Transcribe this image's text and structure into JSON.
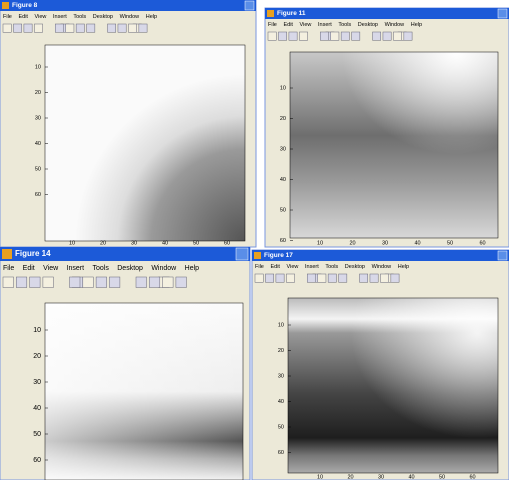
{
  "menu": [
    "File",
    "Edit",
    "View",
    "Insert",
    "Tools",
    "Desktop",
    "Window",
    "Help"
  ],
  "windows": [
    {
      "title": "Figure 8",
      "yticks": [
        10,
        20,
        30,
        40,
        50,
        60
      ],
      "xticks": [
        10,
        20,
        30,
        40,
        50,
        60
      ]
    },
    {
      "title": "Figure 11",
      "yticks": [
        10,
        20,
        30,
        40,
        50,
        60
      ],
      "xticks": [
        10,
        20,
        30,
        40,
        50,
        60
      ]
    },
    {
      "title": "Figure 14",
      "yticks": [
        10,
        20,
        30,
        40,
        50,
        60
      ],
      "xticks": []
    },
    {
      "title": "Figure 17",
      "yticks": [
        10,
        20,
        30,
        40,
        50,
        60
      ],
      "xticks": [
        10,
        20,
        30,
        40,
        50,
        60
      ]
    }
  ]
}
